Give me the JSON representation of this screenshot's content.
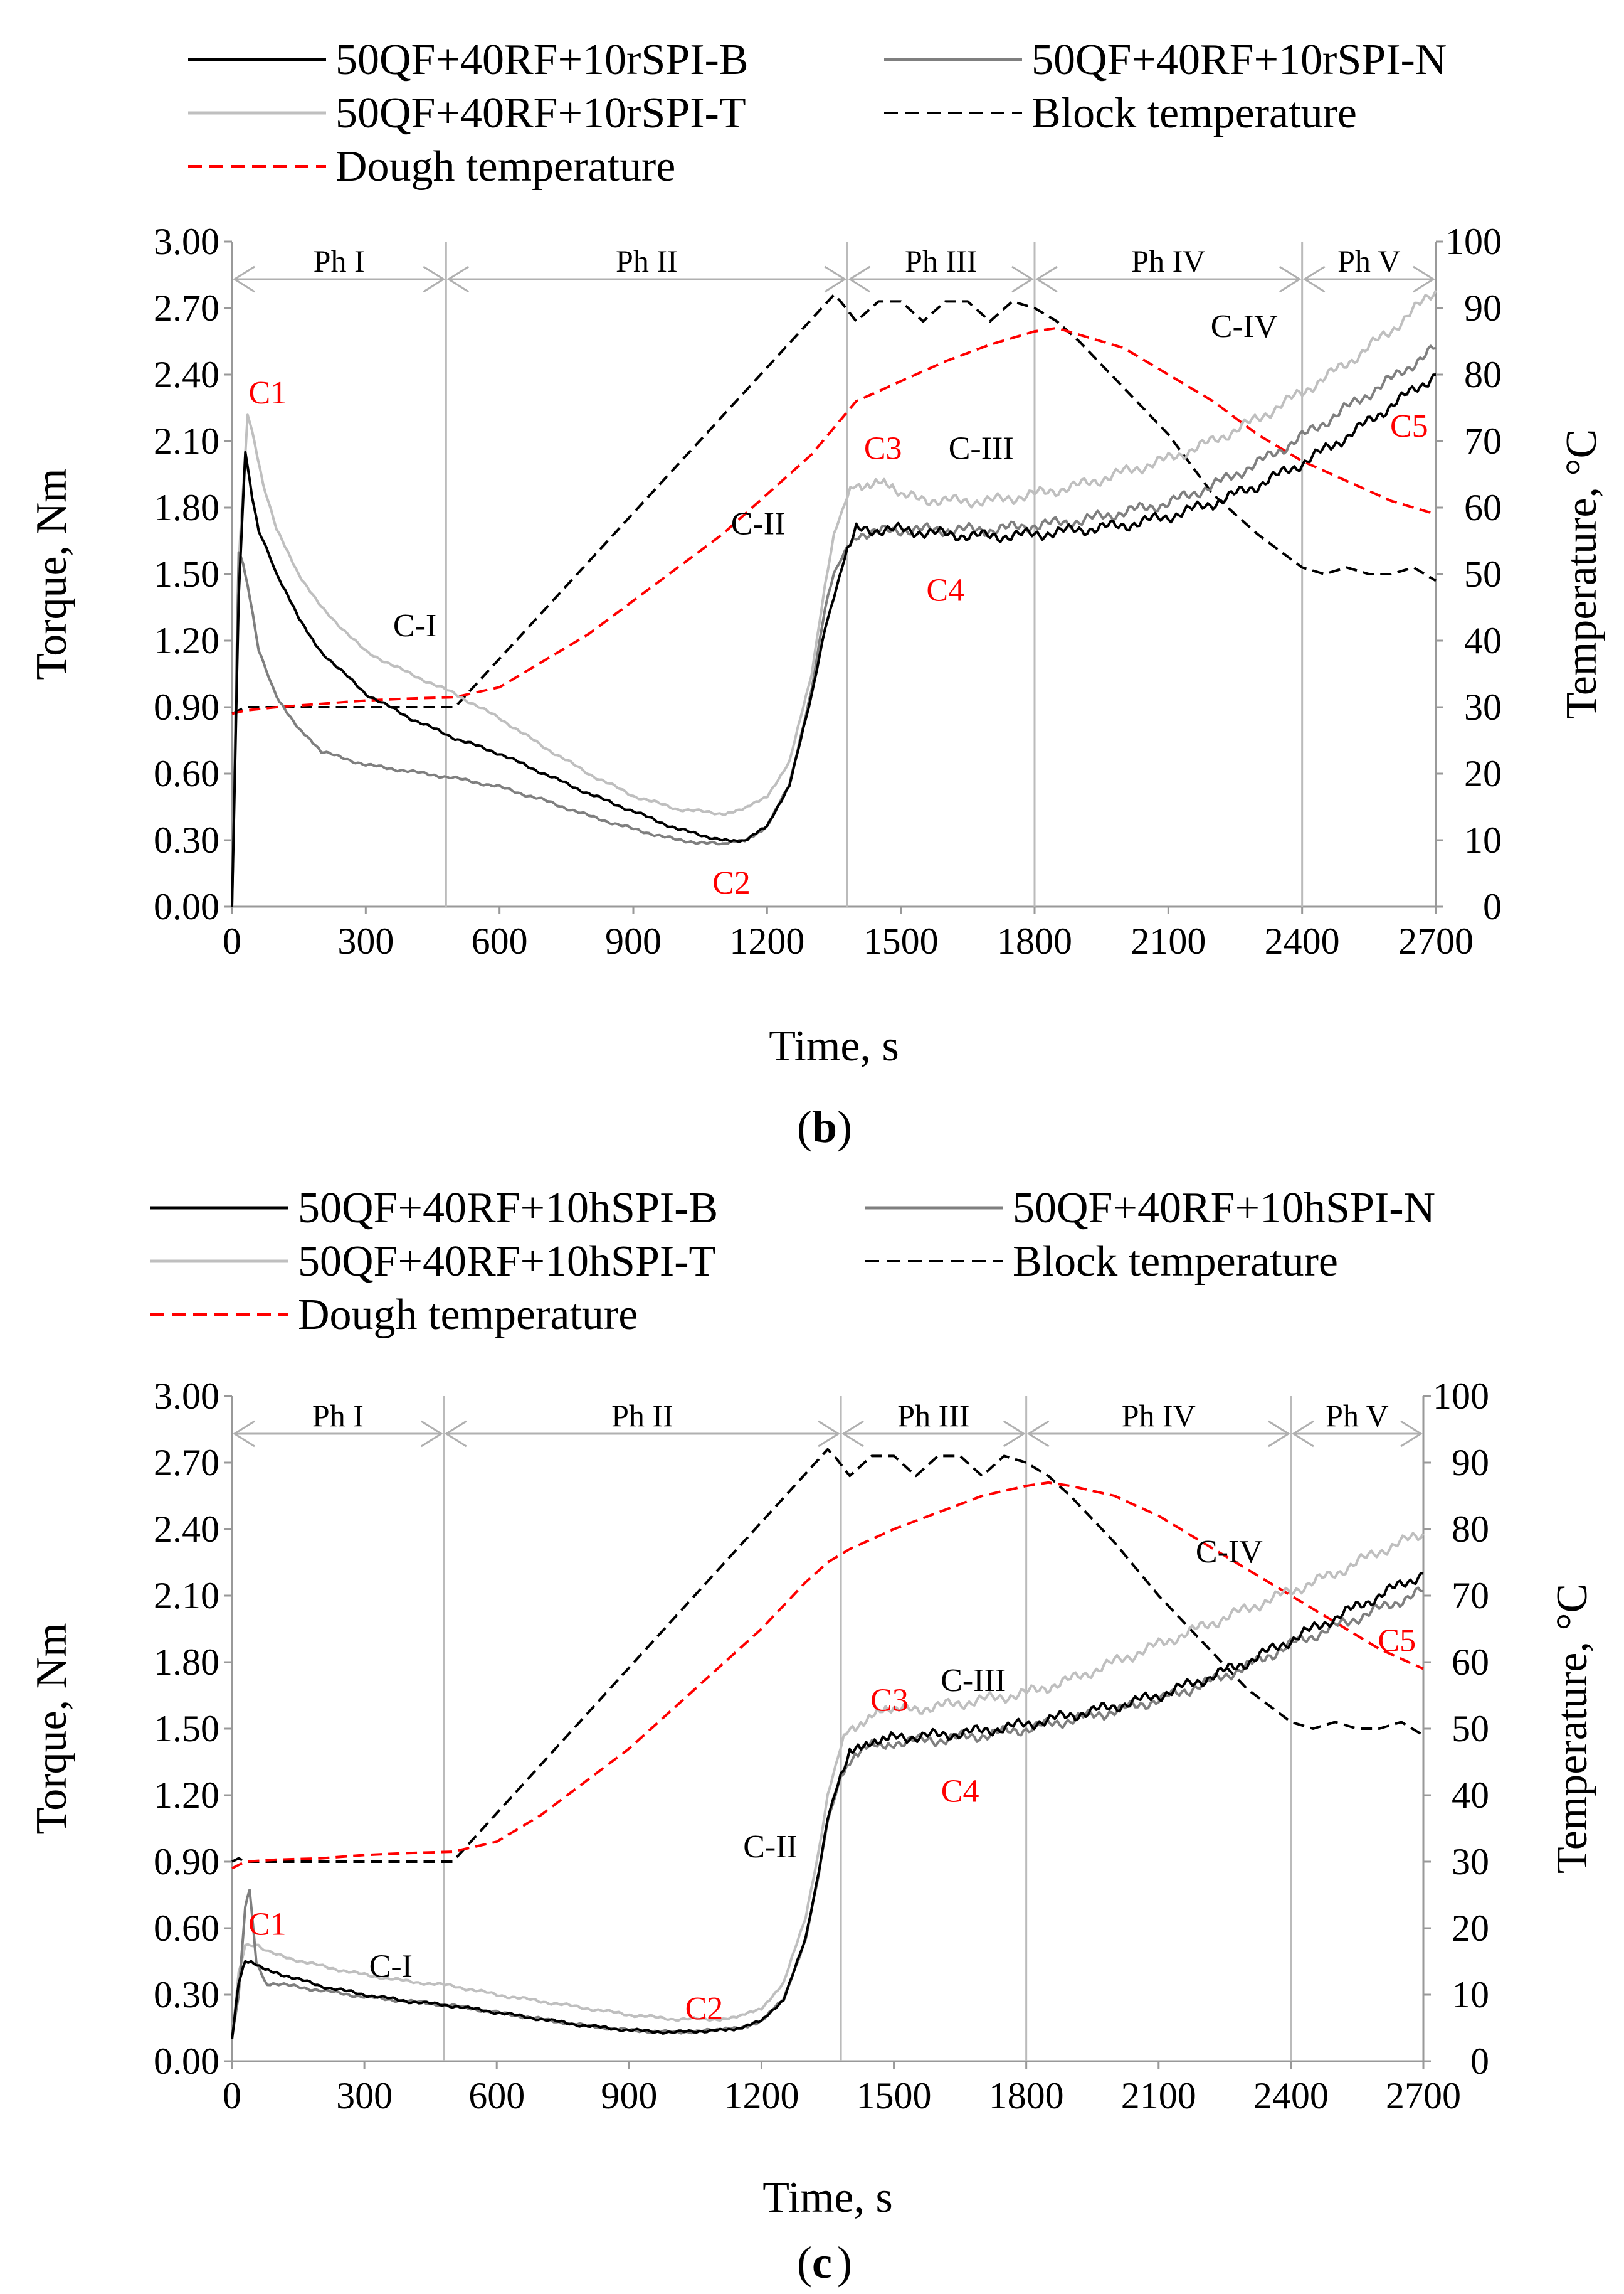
{
  "chart_data": [
    {
      "type": "line",
      "panel_label": "b",
      "xlabel": "Time, s",
      "ylabel_left": "Torque, Nm",
      "ylabel_right": "Temperature, °C",
      "xlim": [
        0,
        2700
      ],
      "ylim_left": [
        0,
        3.0
      ],
      "ylim_right": [
        0,
        100
      ],
      "x_ticks": [
        "0",
        "300",
        "600",
        "900",
        "1200",
        "1500",
        "1800",
        "2100",
        "2400",
        "2700"
      ],
      "y_left_ticks": [
        "0.00",
        "0.30",
        "0.60",
        "0.90",
        "1.20",
        "1.50",
        "1.80",
        "2.10",
        "2.40",
        "2.70",
        "3.00"
      ],
      "y_right_ticks": [
        "0",
        "10",
        "20",
        "30",
        "40",
        "50",
        "60",
        "70",
        "80",
        "90",
        "100"
      ],
      "phases": [
        {
          "label": "Ph I",
          "start": 0,
          "end": 480
        },
        {
          "label": "Ph II",
          "start": 480,
          "end": 1380
        },
        {
          "label": "Ph III",
          "start": 1380,
          "end": 1800
        },
        {
          "label": "Ph IV",
          "start": 1800,
          "end": 2400
        },
        {
          "label": "Ph V",
          "start": 2400,
          "end": 2700
        }
      ],
      "series": [
        {
          "name": "50QF+40RF+10rSPI-B",
          "axis": "left",
          "color": "#000000",
          "dash": false,
          "x": [
            0,
            15,
            30,
            45,
            60,
            100,
            150,
            200,
            300,
            400,
            500,
            600,
            700,
            800,
            900,
            1000,
            1100,
            1150,
            1200,
            1250,
            1300,
            1330,
            1350,
            1380,
            1400,
            1500,
            1600,
            1700,
            1800,
            1900,
            2000,
            2100,
            2200,
            2300,
            2400,
            2500,
            2600,
            2700
          ],
          "y": [
            0.0,
            1.4,
            2.05,
            1.85,
            1.7,
            1.5,
            1.3,
            1.15,
            0.96,
            0.85,
            0.76,
            0.69,
            0.6,
            0.51,
            0.43,
            0.35,
            0.3,
            0.3,
            0.36,
            0.55,
            0.95,
            1.25,
            1.4,
            1.62,
            1.7,
            1.7,
            1.68,
            1.67,
            1.68,
            1.7,
            1.72,
            1.76,
            1.82,
            1.9,
            2.0,
            2.12,
            2.26,
            2.4
          ]
        },
        {
          "name": "50QF+40RF+10rSPI-N",
          "axis": "left",
          "color": "#7f7f7f",
          "dash": false,
          "x": [
            0,
            15,
            25,
            40,
            60,
            100,
            150,
            200,
            300,
            400,
            500,
            600,
            700,
            800,
            900,
            1000,
            1100,
            1150,
            1200,
            1250,
            1300,
            1330,
            1350,
            1380,
            1400,
            1500,
            1600,
            1700,
            1800,
            1900,
            2000,
            2100,
            2200,
            2300,
            2400,
            2500,
            2600,
            2700
          ],
          "y": [
            0.0,
            1.6,
            1.55,
            1.4,
            1.15,
            0.95,
            0.8,
            0.7,
            0.64,
            0.61,
            0.58,
            0.54,
            0.48,
            0.41,
            0.35,
            0.3,
            0.28,
            0.3,
            0.36,
            0.55,
            0.98,
            1.35,
            1.5,
            1.62,
            1.68,
            1.7,
            1.7,
            1.7,
            1.72,
            1.74,
            1.78,
            1.82,
            1.9,
            2.0,
            2.12,
            2.25,
            2.38,
            2.52
          ]
        },
        {
          "name": "50QF+40RF+10rSPI-T",
          "axis": "left",
          "color": "#bfbfbf",
          "dash": false,
          "x": [
            0,
            15,
            35,
            50,
            70,
            100,
            150,
            200,
            300,
            400,
            500,
            600,
            700,
            800,
            900,
            1000,
            1100,
            1150,
            1200,
            1250,
            1300,
            1330,
            1350,
            1380,
            1400,
            1450,
            1500,
            1600,
            1700,
            1800,
            1900,
            2000,
            2100,
            2200,
            2300,
            2400,
            2500,
            2600,
            2700
          ],
          "y": [
            0.0,
            1.55,
            2.22,
            2.1,
            1.9,
            1.7,
            1.5,
            1.35,
            1.15,
            1.05,
            0.96,
            0.85,
            0.72,
            0.6,
            0.5,
            0.44,
            0.42,
            0.44,
            0.5,
            0.65,
            1.05,
            1.45,
            1.68,
            1.85,
            1.9,
            1.92,
            1.85,
            1.83,
            1.83,
            1.86,
            1.9,
            1.96,
            2.02,
            2.1,
            2.2,
            2.32,
            2.45,
            2.6,
            2.78
          ]
        },
        {
          "name": "Block temperature",
          "axis": "right",
          "color": "#000000",
          "dash": true,
          "x": [
            0,
            15,
            30,
            500,
            1350,
            1365,
            1400,
            1450,
            1500,
            1550,
            1600,
            1650,
            1700,
            1750,
            1800,
            1850,
            1900,
            2000,
            2100,
            2200,
            2300,
            2400,
            2450,
            2500,
            2550,
            2600,
            2650,
            2700
          ],
          "y": [
            29,
            29.5,
            30,
            30,
            92,
            91,
            88,
            91,
            91,
            88,
            91,
            91,
            88,
            91,
            90,
            88,
            85,
            78,
            71,
            62,
            56,
            51,
            50,
            51,
            50,
            50,
            51,
            49
          ]
        },
        {
          "name": "Dough temperature",
          "axis": "right",
          "color": "#ff0000",
          "dash": true,
          "x": [
            0,
            30,
            100,
            200,
            300,
            400,
            500,
            600,
            700,
            800,
            900,
            1000,
            1100,
            1200,
            1300,
            1350,
            1400,
            1500,
            1600,
            1700,
            1800,
            1850,
            1900,
            2000,
            2100,
            2200,
            2300,
            2400,
            2500,
            2600,
            2700
          ],
          "y": [
            29,
            29.5,
            30,
            30.5,
            31,
            31.3,
            31.5,
            33,
            37,
            41,
            46,
            51,
            56,
            62,
            68,
            72,
            76,
            79,
            82,
            84.5,
            86.5,
            87,
            86,
            84,
            80,
            76,
            71,
            67,
            64,
            61,
            59
          ]
        }
      ],
      "legend": [
        {
          "label": "50QF+40RF+10rSPI-B"
        },
        {
          "label": "50QF+40RF+10rSPI-N"
        },
        {
          "label": "50QF+40RF+10rSPI-T"
        },
        {
          "label": "Block temperature"
        },
        {
          "label": "Dough temperature"
        }
      ],
      "annotations": [
        {
          "text": "C1",
          "color": "#ff0000",
          "x": 80,
          "y": 2.27
        },
        {
          "text": "C-I",
          "color": "#000000",
          "x": 410,
          "y": 1.22
        },
        {
          "text": "C2",
          "color": "#ff0000",
          "x": 1120,
          "y": 0.06
        },
        {
          "text": "C-II",
          "color": "#000000",
          "x": 1180,
          "y": 1.68
        },
        {
          "text": "C3",
          "color": "#ff0000",
          "x": 1460,
          "y": 2.02
        },
        {
          "text": "C-III",
          "color": "#000000",
          "x": 1680,
          "y": 2.02
        },
        {
          "text": "C4",
          "color": "#ff0000",
          "x": 1600,
          "y": 1.38
        },
        {
          "text": "C-IV",
          "color": "#000000",
          "x": 2270,
          "y": 2.57
        },
        {
          "text": "C5",
          "color": "#ff0000",
          "x": 2640,
          "y": 2.12
        }
      ]
    },
    {
      "type": "line",
      "panel_label": "c",
      "xlabel": "Time, s",
      "ylabel_left": "Torque, Nm",
      "ylabel_right": "Temperature, °C",
      "xlim": [
        0,
        2700
      ],
      "ylim_left": [
        0,
        3.0
      ],
      "ylim_right": [
        0,
        100
      ],
      "x_ticks": [
        "0",
        "300",
        "600",
        "900",
        "1200",
        "1500",
        "1800",
        "2100",
        "2400",
        "2700"
      ],
      "y_left_ticks": [
        "0.00",
        "0.30",
        "0.60",
        "0.90",
        "1.20",
        "1.50",
        "1.80",
        "2.10",
        "2.40",
        "2.70",
        "3.00"
      ],
      "y_right_ticks": [
        "0",
        "10",
        "20",
        "30",
        "40",
        "50",
        "60",
        "70",
        "80",
        "90",
        "100"
      ],
      "phases": [
        {
          "label": "Ph I",
          "start": 0,
          "end": 480
        },
        {
          "label": "Ph II",
          "start": 480,
          "end": 1380
        },
        {
          "label": "Ph III",
          "start": 1380,
          "end": 1800
        },
        {
          "label": "Ph IV",
          "start": 1800,
          "end": 2400
        },
        {
          "label": "Ph V",
          "start": 2400,
          "end": 2700
        }
      ],
      "series": [
        {
          "name": "50QF+40RF+10hSPI-B",
          "axis": "left",
          "color": "#000000",
          "dash": false,
          "x": [
            0,
            15,
            30,
            50,
            100,
            200,
            300,
            400,
            500,
            600,
            700,
            800,
            900,
            1000,
            1100,
            1150,
            1200,
            1250,
            1300,
            1330,
            1350,
            1380,
            1400,
            1450,
            1500,
            1600,
            1700,
            1800,
            1900,
            2000,
            2100,
            2200,
            2300,
            2400,
            2500,
            2600,
            2700
          ],
          "y": [
            0.1,
            0.35,
            0.45,
            0.44,
            0.4,
            0.34,
            0.3,
            0.27,
            0.25,
            0.22,
            0.19,
            0.16,
            0.14,
            0.13,
            0.14,
            0.15,
            0.18,
            0.28,
            0.55,
            0.85,
            1.1,
            1.3,
            1.38,
            1.45,
            1.46,
            1.47,
            1.49,
            1.52,
            1.56,
            1.6,
            1.65,
            1.72,
            1.8,
            1.9,
            2.0,
            2.1,
            2.2
          ]
        },
        {
          "name": "50QF+40RF+10hSPI-N",
          "axis": "left",
          "color": "#7f7f7f",
          "dash": false,
          "x": [
            0,
            15,
            30,
            40,
            55,
            80,
            100,
            200,
            300,
            400,
            500,
            600,
            700,
            800,
            900,
            1000,
            1100,
            1150,
            1200,
            1250,
            1300,
            1330,
            1350,
            1380,
            1400,
            1450,
            1500,
            1600,
            1700,
            1800,
            1900,
            2000,
            2100,
            2200,
            2300,
            2400,
            2500,
            2600,
            2700
          ],
          "y": [
            0.1,
            0.3,
            0.7,
            0.78,
            0.45,
            0.34,
            0.35,
            0.32,
            0.29,
            0.27,
            0.25,
            0.22,
            0.19,
            0.16,
            0.14,
            0.13,
            0.14,
            0.15,
            0.18,
            0.28,
            0.55,
            0.85,
            1.08,
            1.28,
            1.36,
            1.42,
            1.44,
            1.45,
            1.47,
            1.5,
            1.54,
            1.58,
            1.63,
            1.7,
            1.78,
            1.88,
            1.96,
            2.04,
            2.12
          ]
        },
        {
          "name": "50QF+40RF+10hSPI-T",
          "axis": "left",
          "color": "#bfbfbf",
          "dash": false,
          "x": [
            0,
            15,
            30,
            60,
            100,
            200,
            300,
            400,
            500,
            600,
            700,
            800,
            900,
            1000,
            1100,
            1150,
            1200,
            1250,
            1300,
            1330,
            1350,
            1380,
            1400,
            1450,
            1500,
            1600,
            1700,
            1800,
            1900,
            2000,
            2100,
            2200,
            2300,
            2400,
            2500,
            2600,
            2700
          ],
          "y": [
            0.1,
            0.4,
            0.52,
            0.52,
            0.48,
            0.43,
            0.39,
            0.36,
            0.34,
            0.3,
            0.27,
            0.24,
            0.21,
            0.19,
            0.19,
            0.2,
            0.24,
            0.35,
            0.65,
            0.95,
            1.2,
            1.42,
            1.5,
            1.56,
            1.58,
            1.6,
            1.63,
            1.66,
            1.72,
            1.8,
            1.88,
            1.96,
            2.04,
            2.12,
            2.2,
            2.3,
            2.38
          ]
        },
        {
          "name": "Block temperature",
          "axis": "right",
          "color": "#000000",
          "dash": true,
          "x": [
            0,
            15,
            30,
            500,
            1350,
            1365,
            1400,
            1450,
            1500,
            1550,
            1600,
            1650,
            1700,
            1750,
            1800,
            1850,
            1900,
            2000,
            2100,
            2200,
            2300,
            2400,
            2450,
            2500,
            2550,
            2600,
            2650,
            2700
          ],
          "y": [
            30,
            30.5,
            30,
            30,
            92,
            91,
            88,
            91,
            91,
            88,
            91,
            91,
            88,
            91,
            90,
            88,
            85,
            78,
            70,
            63,
            56,
            51,
            50,
            51,
            50,
            50,
            51,
            49
          ]
        },
        {
          "name": "Dough temperature",
          "axis": "right",
          "color": "#ff0000",
          "dash": true,
          "x": [
            0,
            30,
            100,
            200,
            300,
            400,
            500,
            600,
            700,
            800,
            900,
            1000,
            1100,
            1200,
            1300,
            1350,
            1400,
            1500,
            1600,
            1700,
            1800,
            1850,
            1900,
            2000,
            2100,
            2200,
            2300,
            2400,
            2500,
            2600,
            2700
          ],
          "y": [
            29,
            30,
            30.3,
            30.5,
            31,
            31.3,
            31.5,
            33,
            37,
            42,
            47,
            53,
            59,
            65,
            72,
            75,
            77,
            80,
            82.5,
            85,
            86.5,
            87,
            86.5,
            85,
            82,
            78,
            74,
            70,
            66,
            62,
            59
          ]
        }
      ],
      "legend": [
        {
          "label": "50QF+40RF+10hSPI-B"
        },
        {
          "label": "50QF+40RF+10hSPI-N"
        },
        {
          "label": "50QF+40RF+10hSPI-T"
        },
        {
          "label": "Block temperature"
        },
        {
          "label": "Dough temperature"
        }
      ],
      "annotations": [
        {
          "text": "C1",
          "color": "#ff0000",
          "x": 80,
          "y": 0.57
        },
        {
          "text": "C-I",
          "color": "#000000",
          "x": 360,
          "y": 0.38
        },
        {
          "text": "C2",
          "color": "#ff0000",
          "x": 1070,
          "y": 0.19
        },
        {
          "text": "C-II",
          "color": "#000000",
          "x": 1220,
          "y": 0.92
        },
        {
          "text": "C3",
          "color": "#ff0000",
          "x": 1490,
          "y": 1.58
        },
        {
          "text": "C-III",
          "color": "#000000",
          "x": 1680,
          "y": 1.67
        },
        {
          "text": "C4",
          "color": "#ff0000",
          "x": 1650,
          "y": 1.17
        },
        {
          "text": "C-IV",
          "color": "#000000",
          "x": 2260,
          "y": 2.25
        },
        {
          "text": "C5",
          "color": "#ff0000",
          "x": 2640,
          "y": 1.85
        }
      ]
    }
  ]
}
